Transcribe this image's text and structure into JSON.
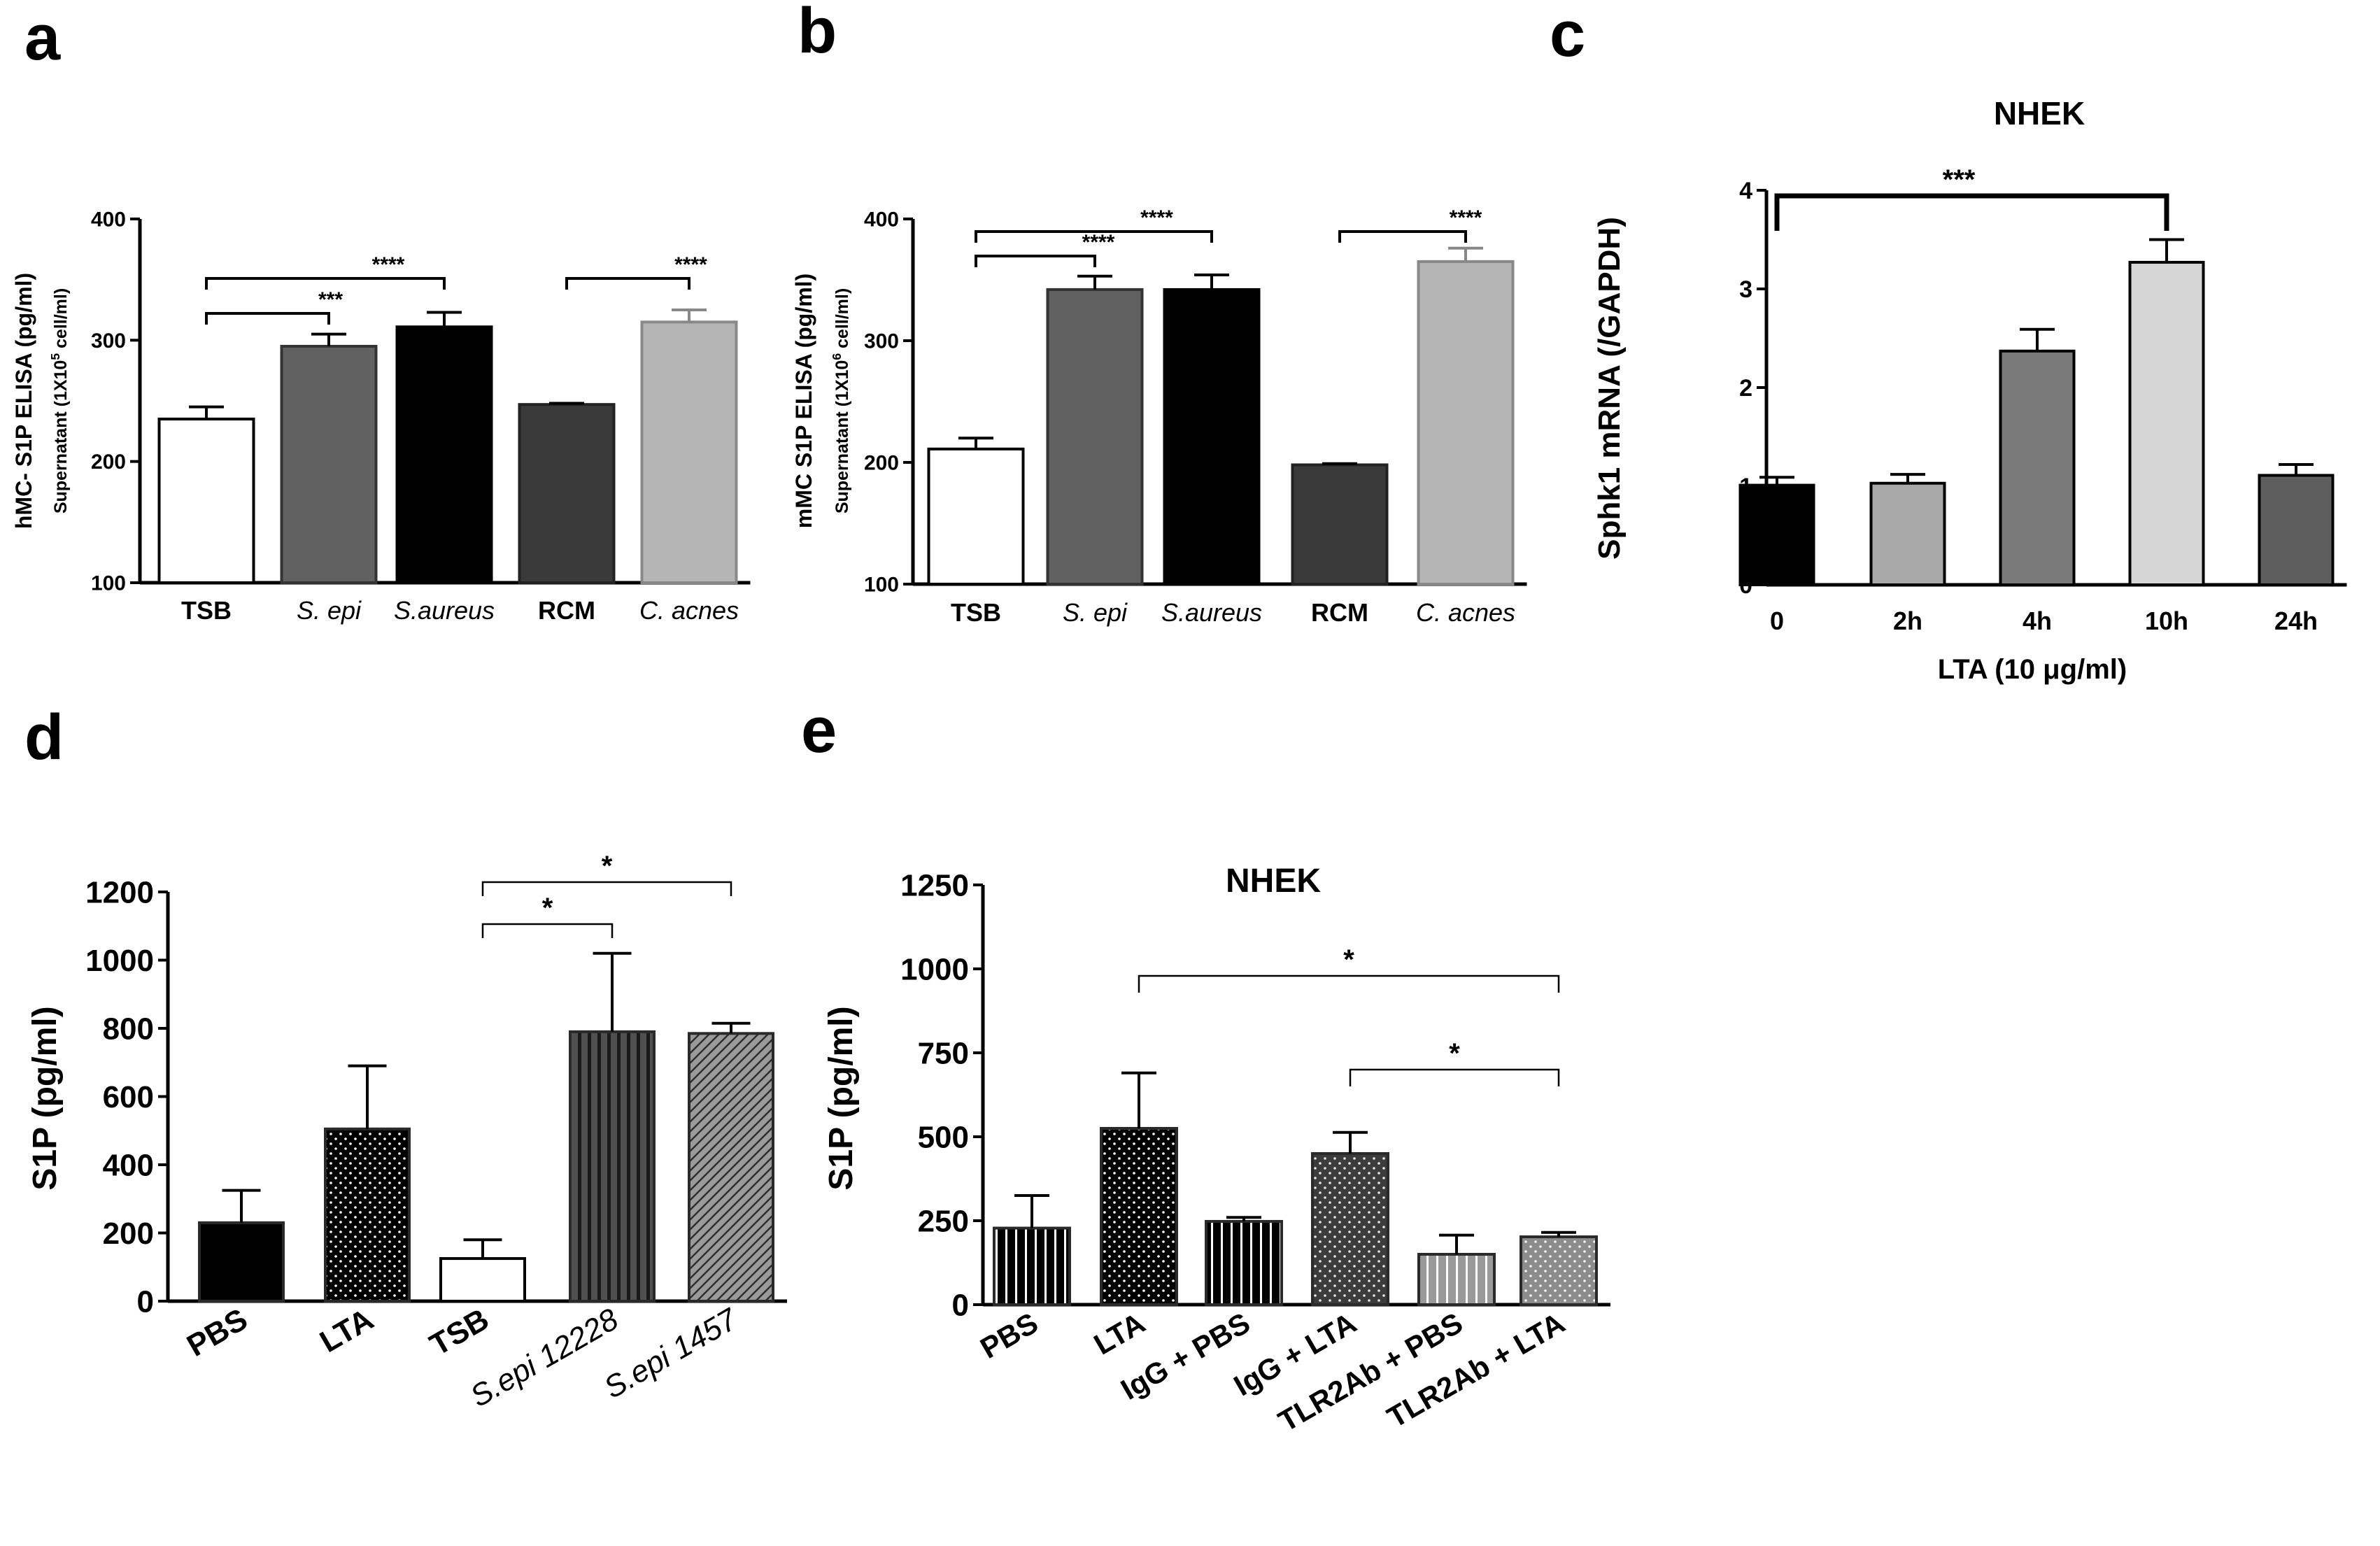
{
  "chart_data": [
    {
      "panel": "a",
      "type": "bar",
      "ylabel": "hMC- S1P ELISA (pg/ml)",
      "ylabel2": "Supernatant (1X10",
      "ylabel2_sup": "5",
      "ylabel2_end": " cell/ml)",
      "ylim": [
        100,
        400
      ],
      "ticks": [
        "100",
        "200",
        "300",
        "400"
      ],
      "tick_values": [
        100,
        200,
        300,
        400
      ],
      "categories": [
        "TSB",
        "S. epi",
        "S.aureus",
        "RCM",
        "C. acnes"
      ],
      "italic": [
        false,
        true,
        true,
        false,
        true
      ],
      "values": [
        235,
        295,
        311,
        247,
        315
      ],
      "errors": [
        10,
        10,
        12,
        1,
        10
      ],
      "colors": [
        "#ffffff",
        "#616161",
        "#000000",
        "#3a3a3a",
        "#b5b5b5"
      ],
      "strokes": [
        "#000000",
        "#333333",
        "#000000",
        "#222222",
        "#888888"
      ],
      "sig": [
        {
          "label": "***",
          "from": 0,
          "to": 1
        },
        {
          "label": "****",
          "from": 0,
          "to": 2
        },
        {
          "label": "****",
          "from": 3,
          "to": 4
        }
      ]
    },
    {
      "panel": "b",
      "type": "bar",
      "ylabel": "mMC S1P ELISA (pg/ml)",
      "ylabel2": "Supernatant (1X10",
      "ylabel2_sup": "6",
      "ylabel2_end": " cell/ml)",
      "ylim": [
        100,
        400
      ],
      "ticks": [
        "100",
        "200",
        "300",
        "400"
      ],
      "tick_values": [
        100,
        200,
        300,
        400
      ],
      "categories": [
        "TSB",
        "S. epi",
        "S.aureus",
        "RCM",
        "C. acnes"
      ],
      "italic": [
        false,
        true,
        true,
        false,
        true
      ],
      "values": [
        211,
        342,
        342,
        198,
        365
      ],
      "errors": [
        9,
        11,
        12,
        1,
        11
      ],
      "colors": [
        "#ffffff",
        "#616161",
        "#000000",
        "#3a3a3a",
        "#b5b5b5"
      ],
      "strokes": [
        "#000000",
        "#333333",
        "#000000",
        "#222222",
        "#888888"
      ],
      "sig": [
        {
          "label": "****",
          "from": 0,
          "to": 1
        },
        {
          "label": "****",
          "from": 0,
          "to": 2
        },
        {
          "label": "****",
          "from": 3,
          "to": 4
        }
      ]
    },
    {
      "panel": "c",
      "type": "bar",
      "title": "NHEK",
      "ylabel": "Sphk1 mRNA (/GAPDH)",
      "xlabel": "LTA (10 μg/ml)",
      "ylim": [
        0,
        4
      ],
      "ticks": [
        "0",
        "1",
        "2",
        "3",
        "4"
      ],
      "tick_values": [
        0,
        1,
        2,
        3,
        4
      ],
      "categories": [
        "0",
        "2h",
        "4h",
        "10h",
        "24h"
      ],
      "values": [
        1.01,
        1.03,
        2.37,
        3.27,
        1.11
      ],
      "errors": [
        0.08,
        0.09,
        0.22,
        0.23,
        0.11
      ],
      "colors": [
        "#000000",
        "#a8a8a8",
        "#7a7a7a",
        "#d6d6d6",
        "#5e5e5e"
      ],
      "sig": [
        {
          "label": "***",
          "from": 0,
          "to": 3
        }
      ]
    },
    {
      "panel": "d",
      "type": "bar",
      "ylabel": "S1P (pg/ml)",
      "ylim": [
        0,
        1200
      ],
      "ticks": [
        "0",
        "200",
        "400",
        "600",
        "800",
        "1000",
        "1200"
      ],
      "tick_values": [
        0,
        200,
        400,
        600,
        800,
        1000,
        1200
      ],
      "categories": [
        "PBS",
        "LTA",
        "TSB",
        "S.epi 12228",
        "S.epi 1457"
      ],
      "italic": [
        false,
        false,
        false,
        true,
        true
      ],
      "values": [
        230,
        505,
        125,
        790,
        785
      ],
      "errors": [
        95,
        185,
        55,
        230,
        30
      ],
      "colors": [
        "#000000",
        "#000000",
        "#ffffff",
        "#505050",
        "#8a8a8a"
      ],
      "patterns": [
        "solid",
        "dots",
        "solid",
        "vlines",
        "diag"
      ],
      "sig": [
        {
          "label": "*",
          "from": 2,
          "to": 3
        },
        {
          "label": "*",
          "from": 2,
          "to": 4
        }
      ]
    },
    {
      "panel": "e",
      "type": "bar",
      "title": "NHEK",
      "ylabel": "S1P (pg/ml)",
      "ylim": [
        0,
        1250
      ],
      "ticks": [
        "0",
        "250",
        "500",
        "750",
        "1000",
        "1250"
      ],
      "tick_values": [
        0,
        250,
        500,
        750,
        1000,
        1250
      ],
      "categories": [
        "PBS",
        "LTA",
        "IgG + PBS",
        "IgG + LTA",
        "TLR2Ab + PBS",
        "TLR2Ab + LTA"
      ],
      "values": [
        228,
        525,
        248,
        450,
        150,
        202
      ],
      "errors": [
        97,
        165,
        12,
        63,
        57,
        13
      ],
      "colors": [
        "#000000",
        "#000000",
        "#000000",
        "#3c3c3c",
        "#999999",
        "#8c8c8c"
      ],
      "patterns": [
        "vlines",
        "dots",
        "vlines",
        "dots",
        "vlines",
        "dots"
      ],
      "sig": [
        {
          "label": "*",
          "from": 1,
          "to": 5
        },
        {
          "label": "*",
          "from": 3,
          "to": 5
        }
      ]
    }
  ]
}
